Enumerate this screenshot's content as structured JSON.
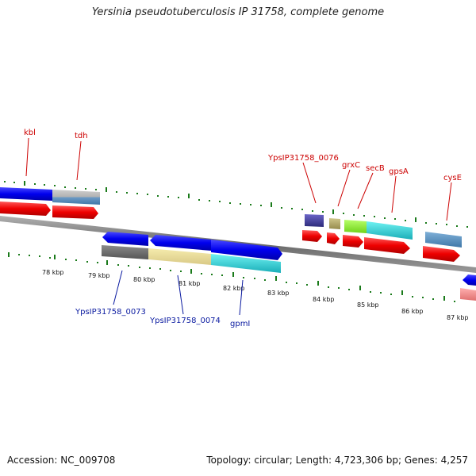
{
  "title": "Yersinia pseudotuberculosis IP 31758, complete genome",
  "footer": {
    "accession": "Accession: NC_009708",
    "summary": "Topology: circular; Length: 4,723,306 bp; Genes: 4,257"
  },
  "colors": {
    "backbone": "#808080",
    "tick": "#1a7a1a",
    "red_label": "#cc0000",
    "blue_label": "#0a1aa0"
  },
  "kbp_labels": [
    "78 kbp",
    "79 kbp",
    "80 kbp",
    "81 kbp",
    "82 kbp",
    "83 kbp",
    "84 kbp",
    "85 kbp",
    "86 kbp",
    "87 kbp"
  ],
  "upper_gene_labels": [
    "kbl",
    "tdh",
    "YpsIP31758_0076",
    "grxC",
    "secB",
    "gpsA",
    "cysE"
  ],
  "lower_gene_labels": [
    "YpsIP31758_0073",
    "YpsIP31758_0074",
    "gpmI"
  ]
}
